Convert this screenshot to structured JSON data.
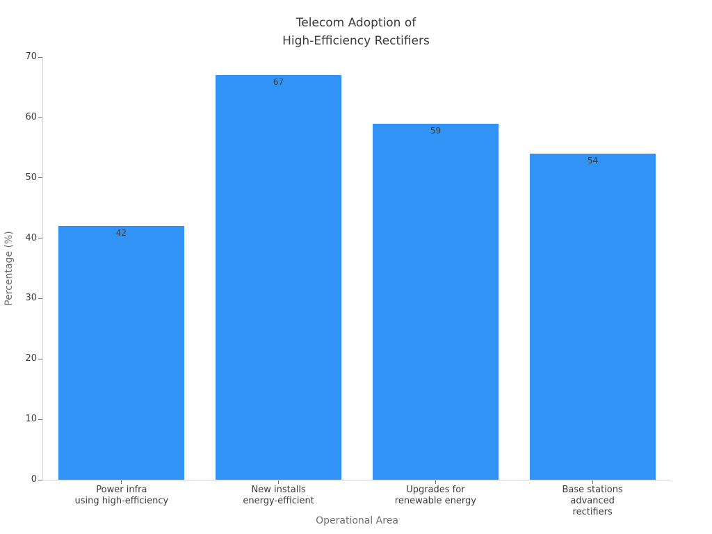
{
  "chart_data": {
    "type": "bar",
    "title": "Telecom Adoption of\nHigh-Efficiency Rectifiers",
    "xlabel": "Operational Area",
    "ylabel": "Percentage (%)",
    "categories": [
      "Power infra\nusing high-efficiency",
      "New installs\nenergy-efficient",
      "Upgrades for\nrenewable energy",
      "Base stations\nadvanced rectifiers"
    ],
    "values": [
      42,
      67,
      59,
      54
    ],
    "value_labels": [
      "42",
      "67",
      "59",
      "54"
    ],
    "ylim": [
      0,
      70
    ],
    "yticks": [
      0,
      10,
      20,
      30,
      40,
      50,
      60,
      70
    ],
    "grid": false,
    "legend_position": "none",
    "bar_width_fraction": 0.8,
    "colors": {
      "bar": "#3093f5",
      "title_text": "#3a3a3a",
      "tick_text": "#3b3b3b",
      "axis_label_text": "#6e6e6e",
      "value_label_text": "#3b3b3b",
      "spine": "#d4d4d4",
      "tick_mark": "#707070",
      "background": "#ffffff"
    }
  }
}
